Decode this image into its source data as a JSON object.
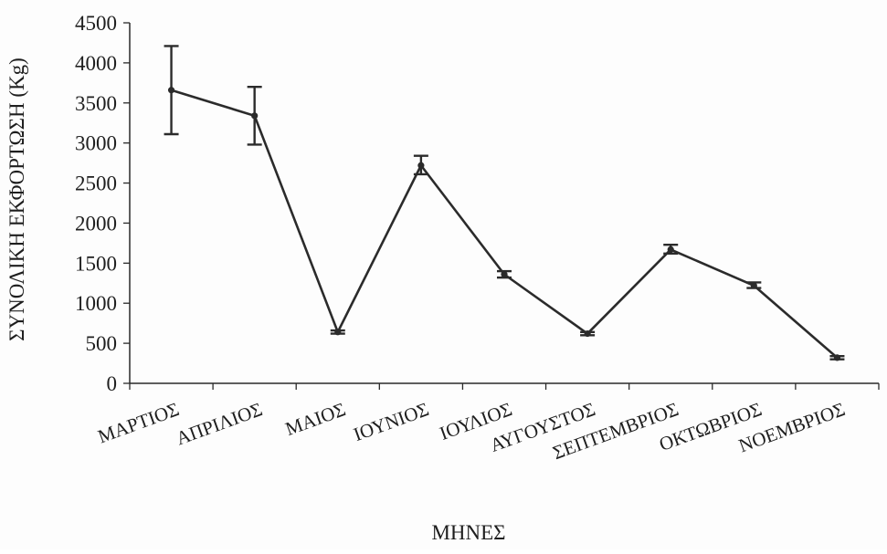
{
  "chart_data": {
    "type": "line",
    "title": "",
    "xlabel": "ΜΗΝΕΣ",
    "ylabel": "ΣΥΝΟΛΙΚΗ ΕΚΦΟΡΤΩΣΗ (Kg)",
    "ylim": [
      0,
      4500
    ],
    "yticks": [
      "0",
      "500",
      "1000",
      "1500",
      "2000",
      "2500",
      "3000",
      "3500",
      "4000",
      "4500"
    ],
    "categories": [
      "ΜΑΡΤΙΟΣ",
      "ΑΠΡΙΛΙΟΣ",
      "ΜΑΙΟΣ",
      "ΙΟΥΝΙΟΣ",
      "ΙΟΥΛΙΟΣ",
      "ΑΥΓΟΥΣΤΟΣ",
      "ΣΕΠΤΕΜΒΡΙΟΣ",
      "ΟΚΤΩΒΡΙΟΣ",
      "ΝΟΕΜΒΡΙΟΣ"
    ],
    "series": [
      {
        "values": [
          3660,
          3340,
          640,
          2720,
          1360,
          620,
          1670,
          1220,
          320
        ],
        "error_low": [
          3110,
          2980,
          620,
          2610,
          1320,
          600,
          1620,
          1190,
          300
        ],
        "error_high": [
          4210,
          3700,
          660,
          2840,
          1400,
          640,
          1730,
          1260,
          340
        ]
      }
    ],
    "grid": false,
    "legend": "none"
  }
}
